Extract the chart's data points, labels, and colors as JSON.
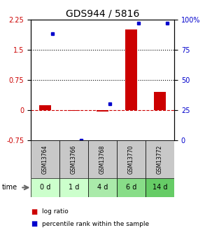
{
  "title": "GDS944 / 5816",
  "samples": [
    "GSM13764",
    "GSM13766",
    "GSM13768",
    "GSM13770",
    "GSM13772"
  ],
  "time_labels": [
    "0 d",
    "1 d",
    "4 d",
    "6 d",
    "14 d"
  ],
  "log_ratio": [
    0.12,
    -0.02,
    -0.03,
    2.0,
    0.45
  ],
  "percentile_rank": [
    88,
    0,
    30,
    97,
    97
  ],
  "ylim_left": [
    -0.75,
    2.25
  ],
  "ylim_right": [
    0,
    100
  ],
  "yticks_left": [
    -0.75,
    0,
    0.75,
    1.5,
    2.25
  ],
  "yticks_right": [
    0,
    25,
    50,
    75,
    100
  ],
  "hlines": [
    0.75,
    1.5
  ],
  "bar_color": "#cc0000",
  "dot_color": "#0000cc",
  "zero_line_color": "#cc0000",
  "sample_bg_color": "#c8c8c8",
  "time_bg_colors": [
    "#ccffcc",
    "#ccffcc",
    "#aaeaaa",
    "#88dd88",
    "#66cc66"
  ],
  "legend_bar_label": "log ratio",
  "legend_dot_label": "percentile rank within the sample",
  "title_fontsize": 10,
  "tick_fontsize": 7,
  "sample_fontsize": 5.5,
  "time_fontsize": 7,
  "legend_fontsize": 6.5
}
